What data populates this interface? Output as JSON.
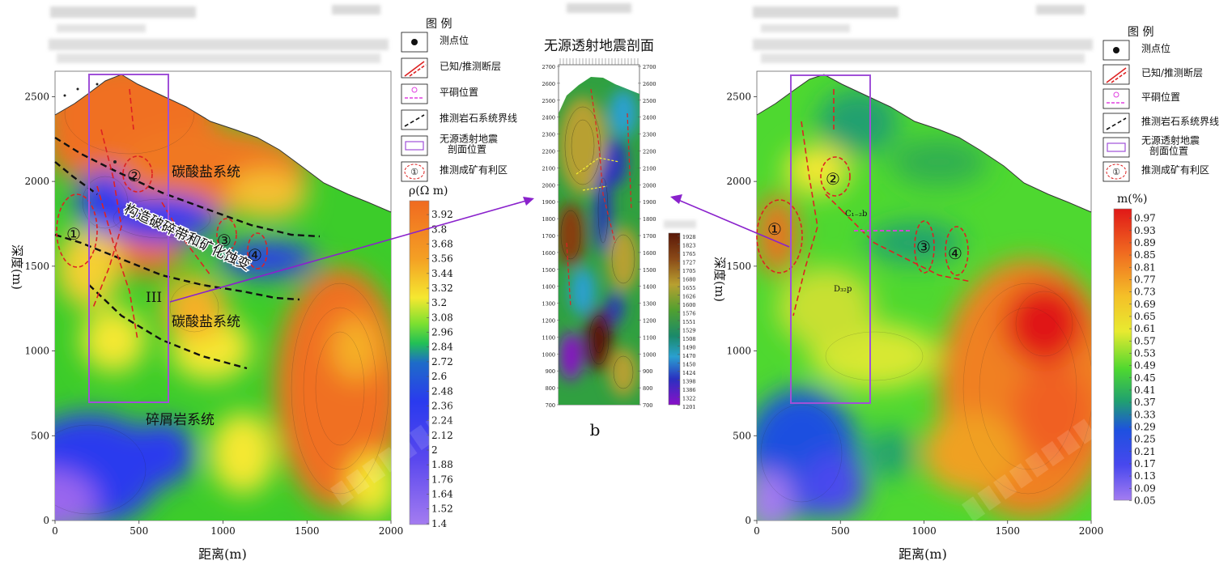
{
  "colors": {
    "c_red": "#cc1111",
    "c_orange": "#f07020",
    "c_yellow": "#f5e830",
    "c_green": "#3ccc2a",
    "c_blue": "#2a3aee",
    "c_violet": "#9a66ee",
    "frame": "#a050d8",
    "dash_red": "#dd2222",
    "dash_black": "#111111",
    "arrow": "#8a22cc"
  },
  "left_panel": {
    "axis": {
      "xlabel": "距离(m)",
      "ylabel": "深度(m)"
    },
    "zones": {
      "carbonate_upper": "碳酸盐系统",
      "carbonate_lower": "碳酸盐系统",
      "clastic": "碎屑岩系统",
      "fracture_zone": "构造破碎带和矿化蚀变",
      "roman_three": "III",
      "circle1": "①",
      "circle2": "②",
      "circle3": "③",
      "circle4": "④"
    },
    "colorbar_title": "ρ(Ω m)"
  },
  "middle_panel": {
    "title": "无源透射地震剖面",
    "sublabel": "b",
    "ticks_left": [
      "2700",
      "2600",
      "2500",
      "2400",
      "2300",
      "2200",
      "2100",
      "2000",
      "1900",
      "1800",
      "1700",
      "1600",
      "1500",
      "1400",
      "1300",
      "1200",
      "1100",
      "1000",
      "900",
      "800",
      "700"
    ],
    "ticks_right": [
      "2700",
      "2600",
      "2500",
      "2400",
      "2300",
      "2200",
      "2100",
      "2000",
      "1900",
      "1800",
      "1700",
      "1600",
      "1500",
      "1400",
      "1300",
      "1200",
      "1100",
      "1000",
      "900",
      "800",
      "700"
    ]
  },
  "right_panel": {
    "axis": {
      "xlabel": "距离(m)",
      "ylabel": "深度(m)"
    },
    "zones": {
      "circle1": "①",
      "circle2": "②",
      "circle3": "③",
      "circle4": "④",
      "lbl_d3": "D₃₂p",
      "lbl_c1": "C₁₋₂b"
    },
    "colorbar_title": "m(%)"
  },
  "legend": {
    "title": "图  例",
    "items": [
      "测点位",
      "已知/推测断层",
      "平硐位置",
      "推测岩石系统界线",
      "无源透射地震\n剖面位置",
      "推测成矿有利区"
    ],
    "sym_circle": "①"
  },
  "chart_data": [
    {
      "type": "heatmap",
      "title": "",
      "xlabel": "距离(m)",
      "ylabel": "深度(m)",
      "x_ticks": [
        "0",
        "500",
        "1000",
        "1500",
        "2000"
      ],
      "y_ticks": [
        "0",
        "500",
        "1000",
        "1500",
        "2000",
        "2500"
      ],
      "xlim": [
        0,
        2000
      ],
      "ylim": [
        0,
        2650
      ],
      "colorbar": {
        "label": "ρ(Ω m)",
        "ticks": [
          "3.92",
          "3.8",
          "3.68",
          "3.56",
          "3.44",
          "3.32",
          "3.2",
          "3.08",
          "2.96",
          "2.84",
          "2.72",
          "2.6",
          "2.48",
          "2.36",
          "2.24",
          "2.12",
          "2",
          "1.88",
          "1.76",
          "1.64",
          "1.52",
          "1.4"
        ]
      },
      "legend": "right"
    },
    {
      "type": "heatmap",
      "title": "无源透射地震剖面",
      "ylim": [
        700,
        2700
      ],
      "y_ticks": [
        "700",
        "800",
        "900",
        "1000",
        "1100",
        "1200",
        "1300",
        "1400",
        "1500",
        "1600",
        "1700",
        "1800",
        "1900",
        "2000",
        "2100",
        "2200",
        "2300",
        "2400",
        "2500",
        "2600",
        "2700"
      ],
      "colorbar": {
        "label": "",
        "ticks": [
          "1928",
          "1823",
          "1765",
          "1727",
          "1705",
          "1680",
          "1655",
          "1626",
          "1600",
          "1576",
          "1551",
          "1529",
          "1508",
          "1490",
          "1470",
          "1450",
          "1424",
          "1398",
          "1386",
          "1322",
          "1201"
        ]
      }
    },
    {
      "type": "heatmap",
      "title": "",
      "xlabel": "距离(m)",
      "ylabel": "深度(m)",
      "x_ticks": [
        "0",
        "500",
        "1000",
        "1500",
        "2000"
      ],
      "y_ticks": [
        "0",
        "500",
        "1000",
        "1500",
        "2000",
        "2500"
      ],
      "xlim": [
        0,
        2000
      ],
      "ylim": [
        0,
        2650
      ],
      "colorbar": {
        "label": "m(%)",
        "ticks": [
          "0.97",
          "0.93",
          "0.89",
          "0.85",
          "0.81",
          "0.77",
          "0.73",
          "0.69",
          "0.65",
          "0.61",
          "0.57",
          "0.53",
          "0.49",
          "0.45",
          "0.41",
          "0.37",
          "0.33",
          "0.29",
          "0.25",
          "0.21",
          "0.17",
          "0.13",
          "0.09",
          "0.05"
        ]
      },
      "legend": "right"
    }
  ]
}
